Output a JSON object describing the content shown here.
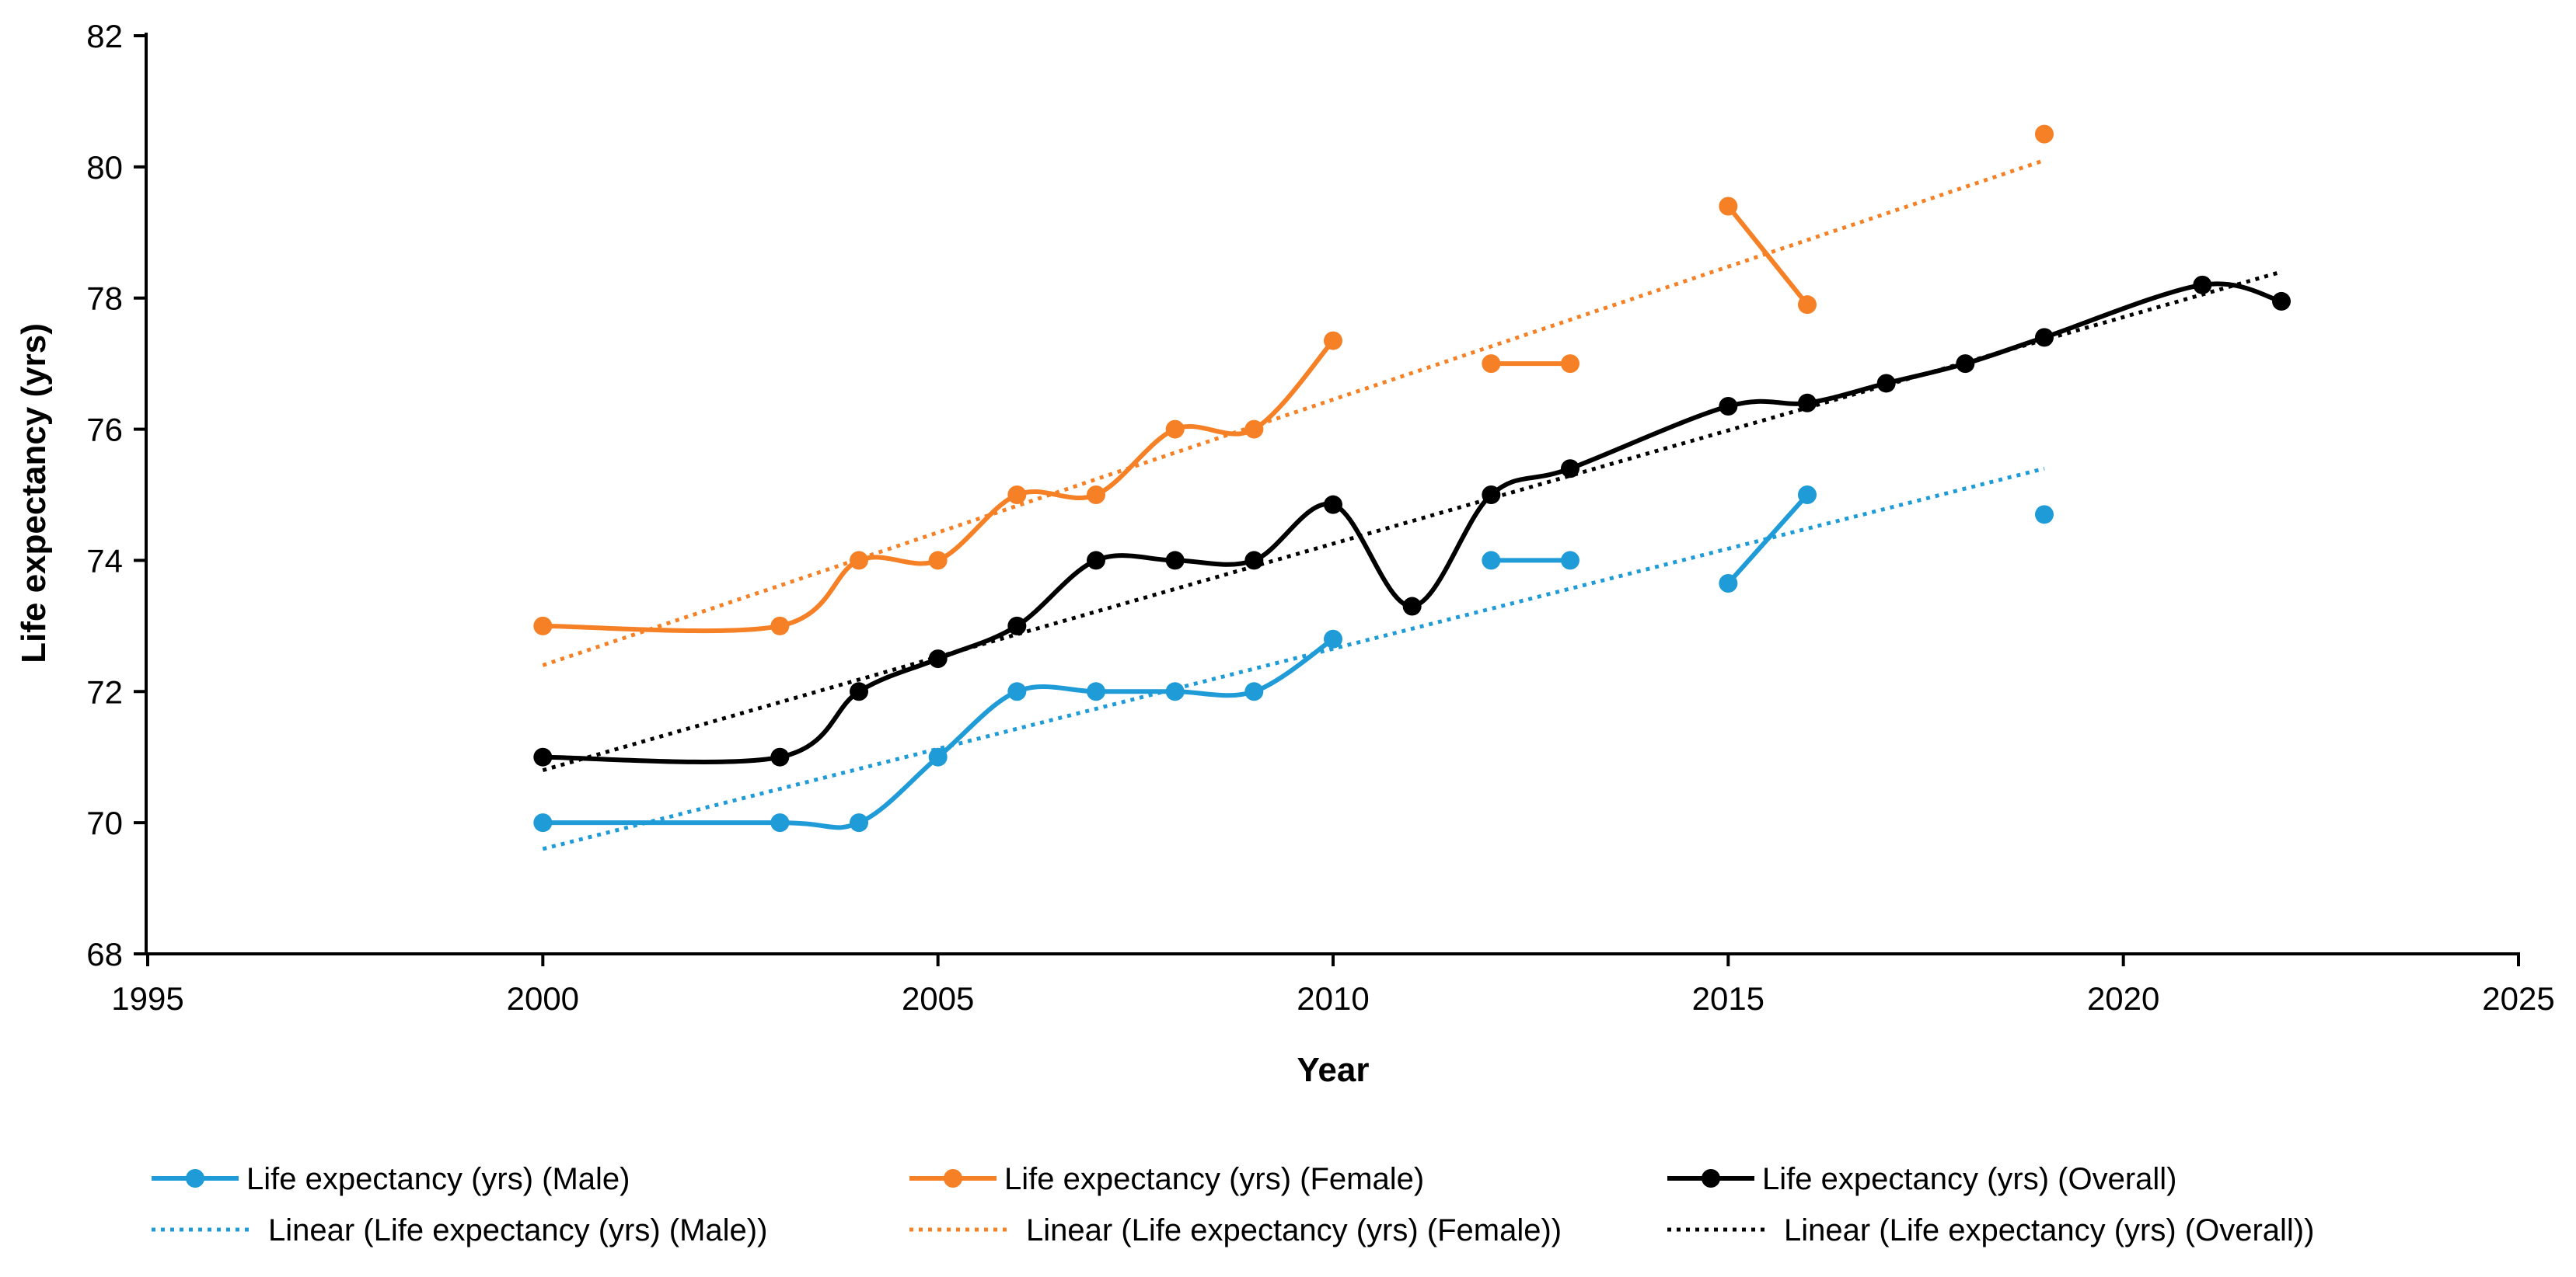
{
  "chart_data": {
    "type": "line",
    "xlabel": "Year",
    "ylabel": "Life expectancy (yrs)",
    "xlim": [
      1995,
      2025
    ],
    "ylim": [
      68,
      82
    ],
    "x_ticks": [
      1995,
      2000,
      2005,
      2010,
      2015,
      2020,
      2025
    ],
    "y_ticks": [
      68,
      70,
      72,
      74,
      76,
      78,
      80,
      82
    ],
    "grid": false,
    "legend_position": "bottom",
    "series": [
      {
        "name": "Life expectancy (yrs) (Male)",
        "color": "#1f9bd7",
        "style": "smooth-line-markers",
        "segments": [
          [
            [
              2000,
              70
            ],
            [
              2003,
              70
            ],
            [
              2004,
              70
            ],
            [
              2005,
              71
            ],
            [
              2006,
              72
            ],
            [
              2007,
              72
            ],
            [
              2008,
              72
            ],
            [
              2009,
              72
            ],
            [
              2010,
              72.8
            ]
          ],
          [
            [
              2012,
              74
            ],
            [
              2013,
              74
            ]
          ],
          [
            [
              2015,
              73.65
            ],
            [
              2016,
              75
            ]
          ],
          [
            [
              2019,
              74.7
            ]
          ]
        ]
      },
      {
        "name": "Life expectancy (yrs) (Female)",
        "color": "#f58025",
        "style": "smooth-line-markers",
        "segments": [
          [
            [
              2000,
              73
            ],
            [
              2003,
              73
            ],
            [
              2004,
              74
            ],
            [
              2005,
              74
            ],
            [
              2006,
              75
            ],
            [
              2007,
              75
            ],
            [
              2008,
              76
            ],
            [
              2009,
              76
            ],
            [
              2010,
              77.35
            ]
          ],
          [
            [
              2012,
              77
            ],
            [
              2013,
              77
            ]
          ],
          [
            [
              2015,
              79.4
            ],
            [
              2016,
              77.9
            ]
          ],
          [
            [
              2019,
              80.5
            ]
          ]
        ]
      },
      {
        "name": "Life expectancy (yrs) (Overall)",
        "color": "#000000",
        "style": "smooth-line-markers",
        "segments": [
          [
            [
              2000,
              71
            ],
            [
              2003,
              71
            ],
            [
              2004,
              72
            ],
            [
              2005,
              72.5
            ],
            [
              2006,
              73
            ],
            [
              2007,
              74
            ],
            [
              2008,
              74
            ],
            [
              2009,
              74
            ],
            [
              2010,
              74.85
            ],
            [
              2011,
              73.3
            ],
            [
              2012,
              75
            ],
            [
              2013,
              75.4
            ],
            [
              2015,
              76.35
            ],
            [
              2016,
              76.4
            ],
            [
              2017,
              76.7
            ],
            [
              2018,
              77
            ],
            [
              2019,
              77.4
            ],
            [
              2021,
              78.2
            ],
            [
              2022,
              77.95
            ]
          ]
        ]
      }
    ],
    "trendlines": [
      {
        "name": "Linear (Life expectancy (yrs) (Male))",
        "color": "#1f9bd7",
        "style": "dotted",
        "points": [
          [
            2000,
            69.6
          ],
          [
            2019,
            75.4
          ]
        ]
      },
      {
        "name": "Linear (Life expectancy (yrs) (Female))",
        "color": "#f58025",
        "style": "dotted",
        "points": [
          [
            2000,
            72.4
          ],
          [
            2019,
            80.1
          ]
        ]
      },
      {
        "name": "Linear (Life expectancy (yrs) (Overall))",
        "color": "#000000",
        "style": "dotted",
        "points": [
          [
            2000,
            70.8
          ],
          [
            2022,
            78.4
          ]
        ]
      }
    ]
  }
}
